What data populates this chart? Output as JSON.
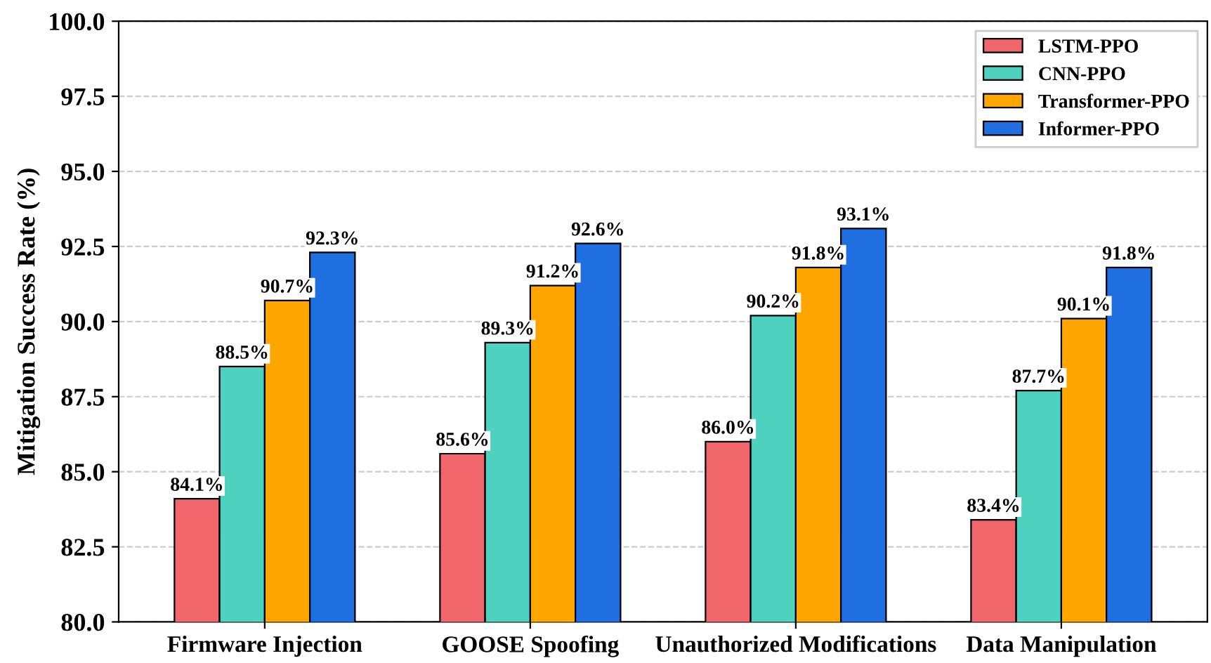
{
  "chart_data": {
    "type": "bar",
    "ylabel": "Mitigation Success Rate (%)",
    "categories": [
      "Firmware Injection",
      "GOOSE Spoofing",
      "Unauthorized Modifications",
      "Data Manipulation"
    ],
    "series": [
      {
        "name": "LSTM-PPO",
        "color": "#f0666a",
        "values": [
          84.1,
          85.6,
          86.0,
          83.4
        ],
        "value_labels": [
          "84.1%",
          "85.6%",
          "86.0%",
          "83.4%"
        ]
      },
      {
        "name": "CNN-PPO",
        "color": "#4fd1c0",
        "values": [
          88.5,
          89.3,
          90.2,
          87.7
        ],
        "value_labels": [
          "88.5%",
          "89.3%",
          "90.2%",
          "87.7%"
        ]
      },
      {
        "name": "Transformer-PPO",
        "color": "#ffa500",
        "values": [
          90.7,
          91.2,
          91.8,
          90.1
        ],
        "value_labels": [
          "90.7%",
          "91.2%",
          "91.8%",
          "90.1%"
        ]
      },
      {
        "name": "Informer-PPO",
        "color": "#1f6fe0",
        "values": [
          92.3,
          92.6,
          93.1,
          91.8
        ],
        "value_labels": [
          "92.3%",
          "92.6%",
          "93.1%",
          "91.8%"
        ]
      }
    ],
    "ylim": [
      80,
      100
    ],
    "yticks": [
      {
        "value": 80,
        "label": "80.0"
      },
      {
        "value": 82.5,
        "label": "82.5"
      },
      {
        "value": 85,
        "label": "85.0"
      },
      {
        "value": 87.5,
        "label": "87.5"
      },
      {
        "value": 90,
        "label": "90.0"
      },
      {
        "value": 92.5,
        "label": "92.5"
      },
      {
        "value": 95,
        "label": "95.0"
      },
      {
        "value": 97.5,
        "label": "97.5"
      },
      {
        "value": 100,
        "label": "100.0"
      }
    ],
    "grid": "y",
    "legend": "top right"
  }
}
